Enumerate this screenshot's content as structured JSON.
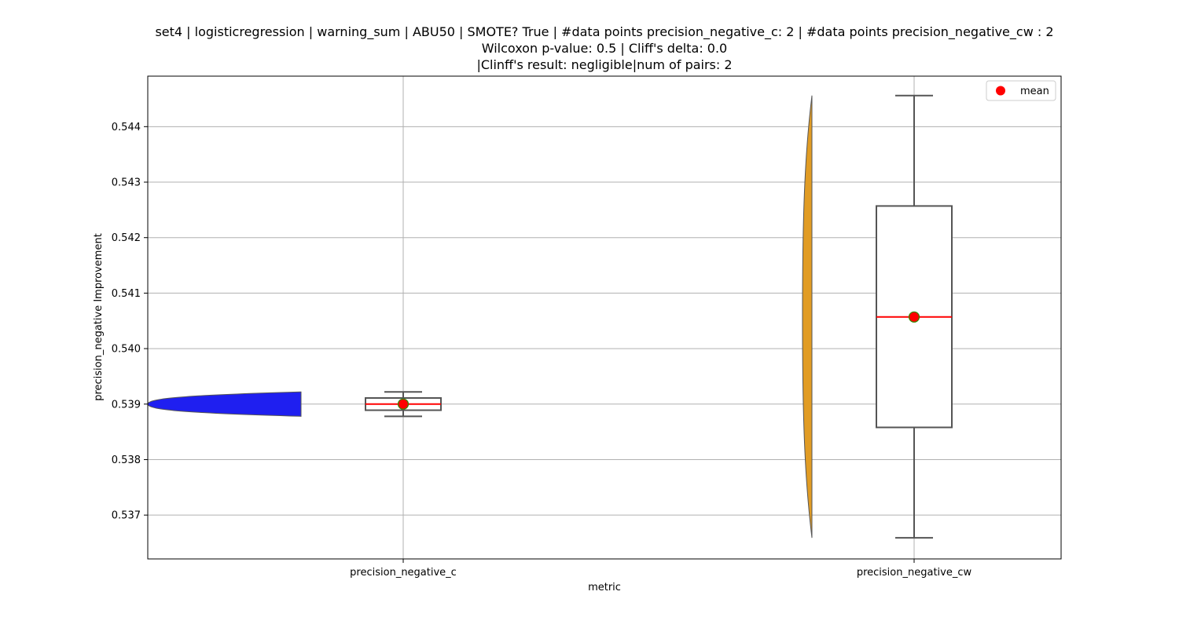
{
  "chart_data": {
    "type": "box",
    "title_lines": [
      "set4 | logisticregression | warning_sum | ABU50 | SMOTE? True | #data points precision_negative_c: 2 | #data points precision_negative_cw : 2",
      "Wilcoxon p-value: 0.5 | Cliff's delta: 0.0",
      "|Clinff's result: negligible|num of pairs: 2"
    ],
    "xlabel": "metric",
    "ylabel": "precision_negative Improvement",
    "ylim": [
      0.53621,
      0.54491
    ],
    "yticks": [
      0.537,
      0.538,
      0.539,
      0.54,
      0.541,
      0.542,
      0.543,
      0.544
    ],
    "ytick_labels": [
      "0.537",
      "0.538",
      "0.539",
      "0.540",
      "0.541",
      "0.542",
      "0.543",
      "0.544"
    ],
    "categories": [
      "precision_negative_c",
      "precision_negative_cw"
    ],
    "grid": true,
    "legend": {
      "entries": [
        "mean"
      ],
      "position": "upper-right"
    },
    "series": [
      {
        "category": "precision_negative_c",
        "values": [
          0.53878,
          0.53922
        ],
        "min": 0.53878,
        "q1": 0.53889,
        "median": 0.539,
        "q3": 0.53911,
        "max": 0.53922,
        "mean": 0.539,
        "violin_color": "#1f1ff0"
      },
      {
        "category": "precision_negative_cw",
        "values": [
          0.53659,
          0.54456
        ],
        "min": 0.53659,
        "q1": 0.53858,
        "median": 0.54057,
        "q3": 0.54257,
        "max": 0.54456,
        "mean": 0.54057,
        "violin_color": "#e19c24"
      }
    ],
    "colors": {
      "median_line": "#ff0000",
      "mean_marker": "#ff0000",
      "mean_edge": "#2e8b00",
      "box_edge": "#555555",
      "grid": "#b0b0b0"
    }
  }
}
